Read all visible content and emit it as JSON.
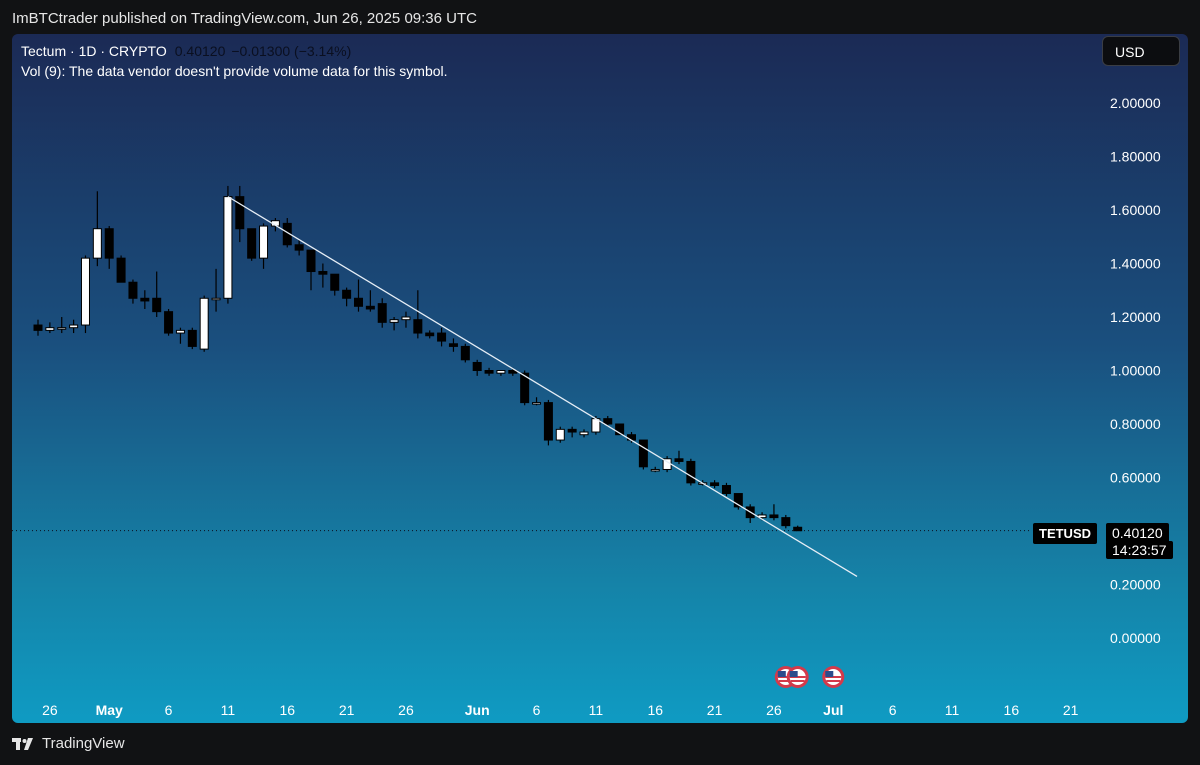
{
  "header": {
    "published": "ImBTCtrader published on TradingView.com, Jun 26, 2025 09:36 UTC"
  },
  "legend": {
    "symbol_line": "Tectum · 1D · CRYPTO",
    "price": "0.40120",
    "change": "−0.01300 (−3.14%)",
    "volume_note": "Vol (9): The data vendor doesn't provide volume data for this symbol."
  },
  "currency": "USD",
  "last_price": {
    "symbol": "TETUSD",
    "price": "0.40120",
    "countdown": "14:23:57",
    "value": 0.4012
  },
  "footer": {
    "brand": "TradingView"
  },
  "colors": {
    "up_candle": "#ffffff",
    "down_candle": "#000000",
    "trendline": "#e6eef6",
    "text": "#ffffff"
  },
  "event_icons": [
    "us-flag-icon",
    "us-flag-icon",
    "us-flag-icon"
  ],
  "chart_data": {
    "type": "candlestick",
    "title": "Tectum · 1D · CRYPTO",
    "ylim": [
      -0.2,
      2.1
    ],
    "y_ticks": [
      "2.00000",
      "1.80000",
      "1.60000",
      "1.40000",
      "1.20000",
      "1.00000",
      "0.80000",
      "0.60000",
      "0.20000",
      "0.00000"
    ],
    "y_tick_values": [
      2.0,
      1.8,
      1.6,
      1.4,
      1.2,
      1.0,
      0.8,
      0.6,
      0.2,
      0.0
    ],
    "x_ticks": [
      "26",
      "May",
      "6",
      "11",
      "16",
      "21",
      "26",
      "Jun",
      "6",
      "11",
      "16",
      "21",
      "26",
      "Jul",
      "6",
      "11",
      "16",
      "21"
    ],
    "x_start": "2025-04-25",
    "x_tick_dates": [
      "2025-04-26",
      "2025-05-01",
      "2025-05-06",
      "2025-05-11",
      "2025-05-16",
      "2025-05-21",
      "2025-05-26",
      "2025-06-01",
      "2025-06-06",
      "2025-06-11",
      "2025-06-16",
      "2025-06-21",
      "2025-06-26",
      "2025-07-01",
      "2025-07-06",
      "2025-07-11",
      "2025-07-16",
      "2025-07-21"
    ],
    "candles": [
      {
        "d": "2025-04-25",
        "o": 1.17,
        "h": 1.19,
        "l": 1.13,
        "c": 1.15
      },
      {
        "d": "2025-04-26",
        "o": 1.15,
        "h": 1.18,
        "l": 1.14,
        "c": 1.16
      },
      {
        "d": "2025-04-27",
        "o": 1.16,
        "h": 1.2,
        "l": 1.14,
        "c": 1.16
      },
      {
        "d": "2025-04-28",
        "o": 1.16,
        "h": 1.19,
        "l": 1.14,
        "c": 1.17
      },
      {
        "d": "2025-04-29",
        "o": 1.17,
        "h": 1.43,
        "l": 1.14,
        "c": 1.42
      },
      {
        "d": "2025-04-30",
        "o": 1.42,
        "h": 1.67,
        "l": 1.39,
        "c": 1.53
      },
      {
        "d": "2025-05-01",
        "o": 1.53,
        "h": 1.54,
        "l": 1.38,
        "c": 1.42
      },
      {
        "d": "2025-05-02",
        "o": 1.42,
        "h": 1.43,
        "l": 1.33,
        "c": 1.33
      },
      {
        "d": "2025-05-03",
        "o": 1.33,
        "h": 1.34,
        "l": 1.25,
        "c": 1.27
      },
      {
        "d": "2025-05-04",
        "o": 1.27,
        "h": 1.3,
        "l": 1.23,
        "c": 1.26
      },
      {
        "d": "2025-05-05",
        "o": 1.27,
        "h": 1.37,
        "l": 1.2,
        "c": 1.22
      },
      {
        "d": "2025-05-06",
        "o": 1.22,
        "h": 1.23,
        "l": 1.13,
        "c": 1.14
      },
      {
        "d": "2025-05-07",
        "o": 1.14,
        "h": 1.16,
        "l": 1.1,
        "c": 1.15
      },
      {
        "d": "2025-05-08",
        "o": 1.15,
        "h": 1.16,
        "l": 1.08,
        "c": 1.09
      },
      {
        "d": "2025-05-09",
        "o": 1.08,
        "h": 1.28,
        "l": 1.07,
        "c": 1.27
      },
      {
        "d": "2025-05-10",
        "o": 1.27,
        "h": 1.38,
        "l": 1.22,
        "c": 1.27
      },
      {
        "d": "2025-05-11",
        "o": 1.27,
        "h": 1.69,
        "l": 1.25,
        "c": 1.65
      },
      {
        "d": "2025-05-12",
        "o": 1.65,
        "h": 1.69,
        "l": 1.48,
        "c": 1.53
      },
      {
        "d": "2025-05-13",
        "o": 1.53,
        "h": 1.53,
        "l": 1.41,
        "c": 1.42
      },
      {
        "d": "2025-05-14",
        "o": 1.42,
        "h": 1.55,
        "l": 1.38,
        "c": 1.54
      },
      {
        "d": "2025-05-15",
        "o": 1.54,
        "h": 1.57,
        "l": 1.52,
        "c": 1.56
      },
      {
        "d": "2025-05-16",
        "o": 1.55,
        "h": 1.57,
        "l": 1.46,
        "c": 1.47
      },
      {
        "d": "2025-05-17",
        "o": 1.47,
        "h": 1.49,
        "l": 1.43,
        "c": 1.45
      },
      {
        "d": "2025-05-18",
        "o": 1.45,
        "h": 1.45,
        "l": 1.3,
        "c": 1.37
      },
      {
        "d": "2025-05-19",
        "o": 1.37,
        "h": 1.4,
        "l": 1.31,
        "c": 1.36
      },
      {
        "d": "2025-05-20",
        "o": 1.36,
        "h": 1.36,
        "l": 1.28,
        "c": 1.3
      },
      {
        "d": "2025-05-21",
        "o": 1.3,
        "h": 1.31,
        "l": 1.24,
        "c": 1.27
      },
      {
        "d": "2025-05-22",
        "o": 1.27,
        "h": 1.34,
        "l": 1.22,
        "c": 1.24
      },
      {
        "d": "2025-05-23",
        "o": 1.24,
        "h": 1.3,
        "l": 1.22,
        "c": 1.23
      },
      {
        "d": "2025-05-24",
        "o": 1.25,
        "h": 1.27,
        "l": 1.16,
        "c": 1.18
      },
      {
        "d": "2025-05-25",
        "o": 1.18,
        "h": 1.2,
        "l": 1.15,
        "c": 1.19
      },
      {
        "d": "2025-05-26",
        "o": 1.19,
        "h": 1.22,
        "l": 1.16,
        "c": 1.2
      },
      {
        "d": "2025-05-27",
        "o": 1.19,
        "h": 1.3,
        "l": 1.12,
        "c": 1.14
      },
      {
        "d": "2025-05-28",
        "o": 1.14,
        "h": 1.15,
        "l": 1.12,
        "c": 1.13
      },
      {
        "d": "2025-05-29",
        "o": 1.14,
        "h": 1.16,
        "l": 1.09,
        "c": 1.11
      },
      {
        "d": "2025-05-30",
        "o": 1.1,
        "h": 1.12,
        "l": 1.07,
        "c": 1.09
      },
      {
        "d": "2025-05-31",
        "o": 1.09,
        "h": 1.1,
        "l": 1.03,
        "c": 1.04
      },
      {
        "d": "2025-06-01",
        "o": 1.03,
        "h": 1.04,
        "l": 0.98,
        "c": 1.0
      },
      {
        "d": "2025-06-02",
        "o": 1.0,
        "h": 1.01,
        "l": 0.98,
        "c": 0.99
      },
      {
        "d": "2025-06-03",
        "o": 0.99,
        "h": 1.0,
        "l": 0.98,
        "c": 1.0
      },
      {
        "d": "2025-06-04",
        "o": 1.0,
        "h": 1.01,
        "l": 0.98,
        "c": 0.99
      },
      {
        "d": "2025-06-05",
        "o": 0.99,
        "h": 1.0,
        "l": 0.87,
        "c": 0.88
      },
      {
        "d": "2025-06-06",
        "o": 0.88,
        "h": 0.9,
        "l": 0.87,
        "c": 0.88
      },
      {
        "d": "2025-06-07",
        "o": 0.88,
        "h": 0.89,
        "l": 0.72,
        "c": 0.74
      },
      {
        "d": "2025-06-08",
        "o": 0.74,
        "h": 0.79,
        "l": 0.73,
        "c": 0.78
      },
      {
        "d": "2025-06-09",
        "o": 0.78,
        "h": 0.79,
        "l": 0.75,
        "c": 0.77
      },
      {
        "d": "2025-06-10",
        "o": 0.76,
        "h": 0.78,
        "l": 0.75,
        "c": 0.77
      },
      {
        "d": "2025-06-11",
        "o": 0.77,
        "h": 0.83,
        "l": 0.76,
        "c": 0.82
      },
      {
        "d": "2025-06-12",
        "o": 0.82,
        "h": 0.83,
        "l": 0.79,
        "c": 0.8
      },
      {
        "d": "2025-06-13",
        "o": 0.8,
        "h": 0.8,
        "l": 0.76,
        "c": 0.76
      },
      {
        "d": "2025-06-14",
        "o": 0.76,
        "h": 0.77,
        "l": 0.73,
        "c": 0.74
      },
      {
        "d": "2025-06-15",
        "o": 0.74,
        "h": 0.74,
        "l": 0.63,
        "c": 0.64
      },
      {
        "d": "2025-06-16",
        "o": 0.63,
        "h": 0.64,
        "l": 0.62,
        "c": 0.63
      },
      {
        "d": "2025-06-17",
        "o": 0.63,
        "h": 0.68,
        "l": 0.62,
        "c": 0.67
      },
      {
        "d": "2025-06-18",
        "o": 0.67,
        "h": 0.7,
        "l": 0.65,
        "c": 0.66
      },
      {
        "d": "2025-06-19",
        "o": 0.66,
        "h": 0.67,
        "l": 0.57,
        "c": 0.58
      },
      {
        "d": "2025-06-20",
        "o": 0.58,
        "h": 0.59,
        "l": 0.57,
        "c": 0.58
      },
      {
        "d": "2025-06-21",
        "o": 0.58,
        "h": 0.59,
        "l": 0.56,
        "c": 0.57
      },
      {
        "d": "2025-06-22",
        "o": 0.57,
        "h": 0.58,
        "l": 0.53,
        "c": 0.54
      },
      {
        "d": "2025-06-23",
        "o": 0.54,
        "h": 0.54,
        "l": 0.48,
        "c": 0.49
      },
      {
        "d": "2025-06-24",
        "o": 0.49,
        "h": 0.5,
        "l": 0.43,
        "c": 0.45
      },
      {
        "d": "2025-06-25",
        "o": 0.45,
        "h": 0.47,
        "l": 0.44,
        "c": 0.46
      },
      {
        "d": "2025-06-26",
        "o": 0.46,
        "h": 0.5,
        "l": 0.44,
        "c": 0.45
      },
      {
        "d": "2025-06-27",
        "o": 0.45,
        "h": 0.46,
        "l": 0.41,
        "c": 0.42
      },
      {
        "d": "2025-06-28",
        "o": 0.414,
        "h": 0.42,
        "l": 0.4,
        "c": 0.401
      }
    ],
    "trendline": {
      "from": {
        "d": "2025-05-11",
        "v": 1.65
      },
      "to": {
        "d": "2025-07-03",
        "v": 0.23
      }
    },
    "event_dates": [
      "2025-06-27",
      "2025-06-28",
      "2025-07-01"
    ]
  }
}
